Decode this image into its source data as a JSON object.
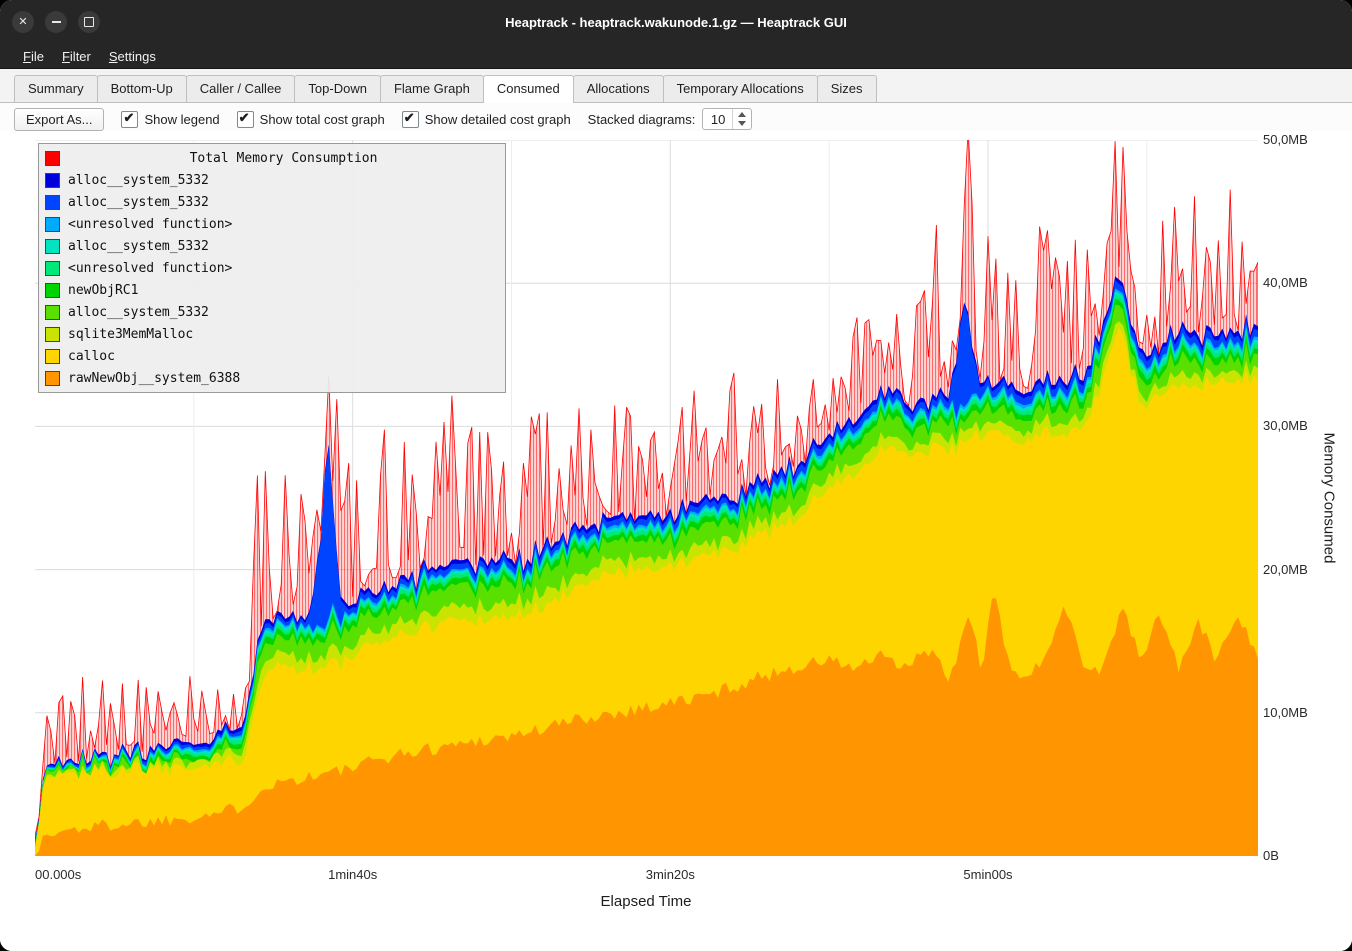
{
  "window": {
    "title": "Heaptrack - heaptrack.wakunode.1.gz — Heaptrack GUI"
  },
  "menu": {
    "items": [
      {
        "label": "File"
      },
      {
        "label": "Filter"
      },
      {
        "label": "Settings"
      }
    ]
  },
  "tabs": {
    "active": "Consumed",
    "items": [
      {
        "label": "Summary"
      },
      {
        "label": "Bottom-Up"
      },
      {
        "label": "Caller / Callee"
      },
      {
        "label": "Top-Down"
      },
      {
        "label": "Flame Graph"
      },
      {
        "label": "Consumed"
      },
      {
        "label": "Allocations"
      },
      {
        "label": "Temporary Allocations"
      },
      {
        "label": "Sizes"
      }
    ]
  },
  "toolbar": {
    "export_label": "Export As...",
    "checkboxes": [
      {
        "label": "Show legend",
        "checked": true
      },
      {
        "label": "Show total cost graph",
        "checked": true
      },
      {
        "label": "Show detailed cost graph",
        "checked": true
      }
    ],
    "stacked_label": "Stacked diagrams:",
    "stacked_value": "10"
  },
  "legend": {
    "title": "Total Memory Consumption",
    "title_color": "#ff0000",
    "entries": [
      {
        "label": "alloc__system_5332",
        "color": "#0000dd"
      },
      {
        "label": "alloc__system_5332",
        "color": "#0044ff"
      },
      {
        "label": "<unresolved function>",
        "color": "#00aaff"
      },
      {
        "label": "alloc__system_5332",
        "color": "#00e5c0"
      },
      {
        "label": "<unresolved function>",
        "color": "#00e878"
      },
      {
        "label": "newObjRC1",
        "color": "#00d400"
      },
      {
        "label": "alloc__system_5332",
        "color": "#5ae000"
      },
      {
        "label": "sqlite3MemMalloc",
        "color": "#c8e400"
      },
      {
        "label": "calloc",
        "color": "#ffd500"
      },
      {
        "label": "rawNewObj__system_6388",
        "color": "#ff9500"
      }
    ]
  },
  "axes": {
    "x_label": "Elapsed Time",
    "y_label": "Memory Consumed"
  },
  "chart_data": {
    "type": "area",
    "subtype": "stacked-area-with-total",
    "title": "Total Memory Consumption",
    "xlabel": "Elapsed Time",
    "ylabel": "Memory Consumed",
    "x_range": [
      0,
      385
    ],
    "y_range_mb": [
      0,
      50
    ],
    "x_ticks": [
      {
        "t": 0,
        "label": "00.000s"
      },
      {
        "t": 100,
        "label": "1min40s"
      },
      {
        "t": 200,
        "label": "3min20s"
      },
      {
        "t": 300,
        "label": "5min00s"
      }
    ],
    "y_ticks": [
      {
        "mb": 0,
        "label": "0B"
      },
      {
        "mb": 10,
        "label": "10,0MB"
      },
      {
        "mb": 20,
        "label": "20,0MB"
      },
      {
        "mb": 30,
        "label": "30,0MB"
      },
      {
        "mb": 40,
        "label": "40,0MB"
      },
      {
        "mb": 50,
        "label": "50,0MB"
      }
    ],
    "grid": true,
    "minor_x_grid_step_s": 50,
    "legend_position": "top-left",
    "noise_seed": 1337,
    "sample_step_s": 1.25,
    "total": {
      "name": "Total Memory Consumption",
      "color": "#ff0000",
      "spike_envelope": [
        [
          0,
          0.5
        ],
        [
          4,
          4
        ],
        [
          10,
          6
        ],
        [
          16,
          8
        ],
        [
          22,
          7
        ],
        [
          30,
          8
        ],
        [
          38,
          6
        ],
        [
          46,
          5
        ],
        [
          54,
          4
        ],
        [
          60,
          7
        ],
        [
          66,
          10
        ],
        [
          72,
          13
        ],
        [
          78,
          10
        ],
        [
          84,
          12
        ],
        [
          90,
          9
        ],
        [
          96,
          11
        ],
        [
          102,
          13
        ],
        [
          108,
          14
        ],
        [
          114,
          10
        ],
        [
          120,
          12
        ],
        [
          126,
          9
        ],
        [
          132,
          12
        ],
        [
          138,
          11
        ],
        [
          144,
          12
        ],
        [
          150,
          9
        ],
        [
          156,
          11
        ],
        [
          162,
          9
        ],
        [
          168,
          10
        ],
        [
          174,
          9
        ],
        [
          180,
          8
        ],
        [
          186,
          9
        ],
        [
          192,
          7
        ],
        [
          198,
          8
        ],
        [
          204,
          9
        ],
        [
          210,
          7
        ],
        [
          216,
          9
        ],
        [
          222,
          10
        ],
        [
          228,
          10
        ],
        [
          234,
          9
        ],
        [
          240,
          8
        ],
        [
          246,
          8
        ],
        [
          252,
          9
        ],
        [
          258,
          11
        ],
        [
          264,
          13
        ],
        [
          270,
          14
        ],
        [
          276,
          15
        ],
        [
          280,
          11
        ],
        [
          284,
          15
        ],
        [
          288,
          16
        ],
        [
          292,
          16
        ],
        [
          296,
          16
        ],
        [
          300,
          13
        ],
        [
          304,
          10
        ],
        [
          308,
          8
        ],
        [
          312,
          9
        ],
        [
          316,
          11
        ],
        [
          320,
          12
        ],
        [
          326,
          11
        ],
        [
          332,
          12
        ],
        [
          338,
          11
        ],
        [
          344,
          10
        ],
        [
          350,
          10
        ],
        [
          356,
          10
        ],
        [
          362,
          10
        ],
        [
          368,
          9
        ],
        [
          374,
          10
        ],
        [
          380,
          9
        ],
        [
          385,
          9
        ]
      ]
    },
    "series_bottom_to_top": [
      {
        "name": "rawNewObj__system_6388",
        "color": "#ff9500",
        "noise": 0.5,
        "keyframes": [
          [
            0,
            0.2
          ],
          [
            3,
            1.3
          ],
          [
            10,
            1.8
          ],
          [
            20,
            2.1
          ],
          [
            30,
            2.3
          ],
          [
            40,
            2.5
          ],
          [
            50,
            2.8
          ],
          [
            60,
            3.1
          ],
          [
            66,
            3.6
          ],
          [
            72,
            4.9
          ],
          [
            80,
            5.3
          ],
          [
            90,
            5.7
          ],
          [
            100,
            6.1
          ],
          [
            110,
            6.9
          ],
          [
            120,
            7.3
          ],
          [
            130,
            7.7
          ],
          [
            140,
            8.1
          ],
          [
            150,
            8.4
          ],
          [
            160,
            8.9
          ],
          [
            170,
            9.5
          ],
          [
            180,
            9.9
          ],
          [
            190,
            10.3
          ],
          [
            200,
            10.7
          ],
          [
            210,
            11.1
          ],
          [
            218,
            11.7
          ],
          [
            226,
            12.3
          ],
          [
            234,
            12.9
          ],
          [
            242,
            13.3
          ],
          [
            250,
            13.7
          ],
          [
            258,
            13.1
          ],
          [
            266,
            13.9
          ],
          [
            274,
            13.1
          ],
          [
            282,
            14.5
          ],
          [
            288,
            12.1
          ],
          [
            294,
            17.0
          ],
          [
            298,
            13.1
          ],
          [
            302,
            18.5
          ],
          [
            306,
            13.6
          ],
          [
            312,
            12.4
          ],
          [
            318,
            13.6
          ],
          [
            324,
            18.0
          ],
          [
            330,
            13.4
          ],
          [
            336,
            12.9
          ],
          [
            342,
            17.5
          ],
          [
            348,
            13.6
          ],
          [
            354,
            17.0
          ],
          [
            360,
            13.1
          ],
          [
            366,
            16.4
          ],
          [
            372,
            13.6
          ],
          [
            378,
            17.0
          ],
          [
            385,
            14.2
          ]
        ]
      },
      {
        "name": "calloc",
        "color": "#ffd500",
        "noise": 0.25,
        "keyframes": [
          [
            0,
            0.6
          ],
          [
            3,
            3.9
          ],
          [
            10,
            4.0
          ],
          [
            30,
            3.8
          ],
          [
            50,
            3.6
          ],
          [
            62,
            3.4
          ],
          [
            66,
            3.5
          ],
          [
            70,
            6.8
          ],
          [
            74,
            8.6
          ],
          [
            80,
            7.9
          ],
          [
            90,
            7.4
          ],
          [
            100,
            7.7
          ],
          [
            108,
            8.2
          ],
          [
            116,
            8.3
          ],
          [
            124,
            8.6
          ],
          [
            132,
            8.7
          ],
          [
            140,
            8.3
          ],
          [
            148,
            8.3
          ],
          [
            156,
            8.5
          ],
          [
            164,
            8.7
          ],
          [
            172,
            9.3
          ],
          [
            176,
            9.8
          ],
          [
            184,
            9.8
          ],
          [
            192,
            9.7
          ],
          [
            200,
            9.6
          ],
          [
            208,
            9.7
          ],
          [
            216,
            9.6
          ],
          [
            224,
            10.0
          ],
          [
            232,
            10.1
          ],
          [
            240,
            10.5
          ],
          [
            248,
            11.6
          ],
          [
            256,
            13.3
          ],
          [
            264,
            13.9
          ],
          [
            272,
            15.1
          ],
          [
            280,
            13.8
          ],
          [
            288,
            16.0
          ],
          [
            294,
            12.2
          ],
          [
            298,
            16.2
          ],
          [
            302,
            11.0
          ],
          [
            306,
            15.6
          ],
          [
            312,
            16.5
          ],
          [
            318,
            15.9
          ],
          [
            324,
            11.8
          ],
          [
            330,
            16.7
          ],
          [
            336,
            20.2
          ],
          [
            340,
            20.5
          ],
          [
            344,
            18.5
          ],
          [
            348,
            17.7
          ],
          [
            354,
            15.2
          ],
          [
            360,
            19.9
          ],
          [
            366,
            16.2
          ],
          [
            372,
            19.5
          ],
          [
            378,
            16.2
          ],
          [
            385,
            19.7
          ]
        ]
      },
      {
        "name": "sqlite3MemMalloc",
        "color": "#c8e400",
        "noise": 0.3,
        "keyframes": [
          [
            0,
            0.1
          ],
          [
            60,
            0.4
          ],
          [
            68,
            0.8
          ],
          [
            120,
            0.9
          ],
          [
            200,
            0.8
          ],
          [
            300,
            0.7
          ],
          [
            385,
            0.7
          ]
        ]
      },
      {
        "name": "alloc__system_5332",
        "color": "#5ae000",
        "noise": 0.45,
        "keyframes": [
          [
            0,
            0.1
          ],
          [
            60,
            0.3
          ],
          [
            68,
            1.2
          ],
          [
            100,
            1.3
          ],
          [
            150,
            1.5
          ],
          [
            200,
            1.3
          ],
          [
            250,
            1.2
          ],
          [
            300,
            1.0
          ],
          [
            385,
            0.9
          ]
        ]
      },
      {
        "name": "newObjRC1",
        "color": "#00d400",
        "noise": 0.12,
        "keyframes": [
          [
            0,
            0.05
          ],
          [
            68,
            0.4
          ],
          [
            385,
            0.45
          ]
        ]
      },
      {
        "name": "<unresolved function>",
        "color": "#00e878",
        "noise": 0.06,
        "keyframes": [
          [
            0,
            0.05
          ],
          [
            68,
            0.25
          ],
          [
            385,
            0.3
          ]
        ]
      },
      {
        "name": "alloc__system_5332",
        "color": "#00e5c0",
        "noise": 0.06,
        "keyframes": [
          [
            0,
            0.04
          ],
          [
            68,
            0.2
          ],
          [
            385,
            0.25
          ]
        ]
      },
      {
        "name": "<unresolved function>",
        "color": "#00aaff",
        "noise": 0.05,
        "keyframes": [
          [
            0,
            0.03
          ],
          [
            68,
            0.15
          ],
          [
            385,
            0.2
          ]
        ]
      },
      {
        "name": "alloc__system_5332",
        "color": "#0044ff",
        "noise": 0.08,
        "keyframes": [
          [
            0,
            0.1
          ],
          [
            86,
            0.3
          ],
          [
            90,
            6.0
          ],
          [
            92,
            13.8
          ],
          [
            94,
            6.0
          ],
          [
            97,
            0.4
          ],
          [
            200,
            0.4
          ],
          [
            288,
            0.5
          ],
          [
            291,
            5.0
          ],
          [
            293,
            7.8
          ],
          [
            295,
            3.0
          ],
          [
            298,
            0.5
          ],
          [
            385,
            0.5
          ]
        ]
      },
      {
        "name": "alloc__system_5332",
        "color": "#0000dd",
        "noise": 0.06,
        "keyframes": [
          [
            0,
            0.08
          ],
          [
            68,
            0.25
          ],
          [
            385,
            0.3
          ]
        ]
      }
    ]
  }
}
